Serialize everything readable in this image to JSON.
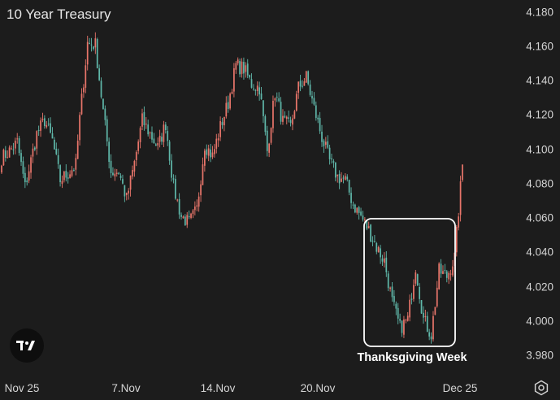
{
  "chart_data": {
    "type": "candlestick",
    "title": "10 Year Treasury",
    "xlabel": "",
    "ylabel": "",
    "ylim": [
      3.976,
      4.184
    ],
    "y_ticks": [
      "4.180",
      "4.160",
      "4.140",
      "4.120",
      "4.100",
      "4.080",
      "4.060",
      "4.040",
      "4.020",
      "4.000",
      "3.980"
    ],
    "x_ticks": [
      "Nov 25",
      "7.Nov",
      "14.Nov",
      "20.Nov",
      "Dec 25"
    ],
    "grid": false,
    "legend": "none",
    "annotations": [
      {
        "text": "Thanksgiving Week",
        "type": "box"
      }
    ],
    "colors": {
      "up": "#e8756a",
      "down": "#5fb7a9",
      "background": "#1c1c1c",
      "annotation": "#ffffff"
    },
    "close_anchors": [
      [
        0,
        4.095
      ],
      [
        4,
        4.099
      ],
      [
        8,
        4.104
      ],
      [
        12,
        4.078
      ],
      [
        18,
        4.109
      ],
      [
        22,
        4.117
      ],
      [
        26,
        4.105
      ],
      [
        30,
        4.082
      ],
      [
        34,
        4.086
      ],
      [
        38,
        4.091
      ],
      [
        40,
        4.118
      ],
      [
        44,
        4.162
      ],
      [
        48,
        4.161
      ],
      [
        52,
        4.122
      ],
      [
        56,
        4.087
      ],
      [
        60,
        4.087
      ],
      [
        64,
        4.071
      ],
      [
        68,
        4.092
      ],
      [
        72,
        4.117
      ],
      [
        76,
        4.109
      ],
      [
        80,
        4.101
      ],
      [
        84,
        4.115
      ],
      [
        88,
        4.078
      ],
      [
        92,
        4.061
      ],
      [
        96,
        4.057
      ],
      [
        100,
        4.065
      ],
      [
        104,
        4.103
      ],
      [
        108,
        4.096
      ],
      [
        112,
        4.113
      ],
      [
        116,
        4.127
      ],
      [
        120,
        4.149
      ],
      [
        124,
        4.147
      ],
      [
        128,
        4.138
      ],
      [
        132,
        4.136
      ],
      [
        136,
        4.099
      ],
      [
        140,
        4.133
      ],
      [
        144,
        4.116
      ],
      [
        148,
        4.113
      ],
      [
        152,
        4.136
      ],
      [
        156,
        4.142
      ],
      [
        160,
        4.124
      ],
      [
        164,
        4.107
      ],
      [
        168,
        4.093
      ],
      [
        172,
        4.084
      ],
      [
        176,
        4.082
      ],
      [
        180,
        4.068
      ],
      [
        184,
        4.061
      ],
      [
        188,
        4.053
      ],
      [
        192,
        4.043
      ],
      [
        196,
        4.035
      ],
      [
        200,
        4.011
      ],
      [
        204,
        3.996
      ],
      [
        208,
        4.001
      ],
      [
        212,
        4.032
      ],
      [
        216,
        4.001
      ],
      [
        220,
        3.992
      ],
      [
        224,
        4.029
      ],
      [
        228,
        4.026
      ],
      [
        232,
        4.037
      ],
      [
        236,
        4.091
      ]
    ],
    "n_candles": 237
  }
}
